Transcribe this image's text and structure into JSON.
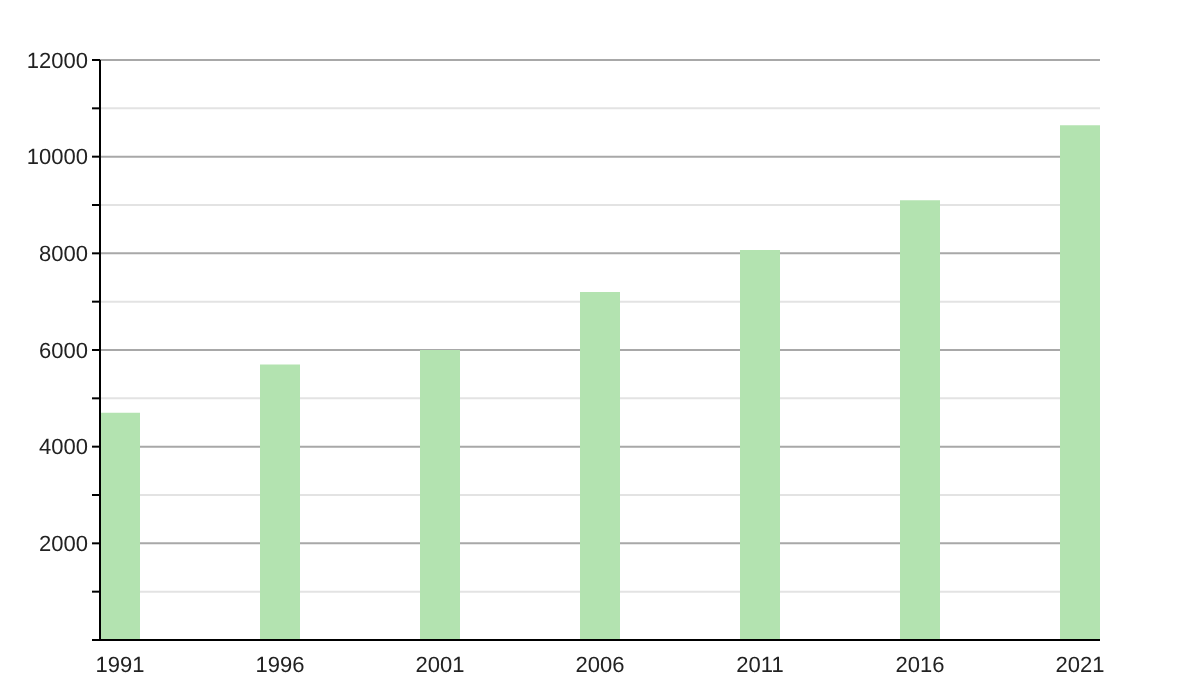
{
  "chart_data": {
    "type": "bar",
    "categories": [
      "1991",
      "1996",
      "2001",
      "2006",
      "2011",
      "2016",
      "2021"
    ],
    "values": [
      4700,
      5700,
      6000,
      7200,
      8070,
      9100,
      10650
    ],
    "color": "#b3e3b0",
    "ylim": [
      0,
      12000
    ],
    "yticks": [
      {
        "value": 0,
        "label": null
      },
      {
        "value": 1000,
        "label": null
      },
      2000,
      {
        "value": 3000,
        "label": null
      },
      4000,
      {
        "value": 5000,
        "label": null
      },
      6000,
      {
        "value": 7000,
        "label": null
      },
      8000,
      {
        "value": 9000,
        "label": null
      },
      10000,
      {
        "value": 11000,
        "label": null
      },
      12000
    ],
    "grid": "y",
    "legend": false
  }
}
